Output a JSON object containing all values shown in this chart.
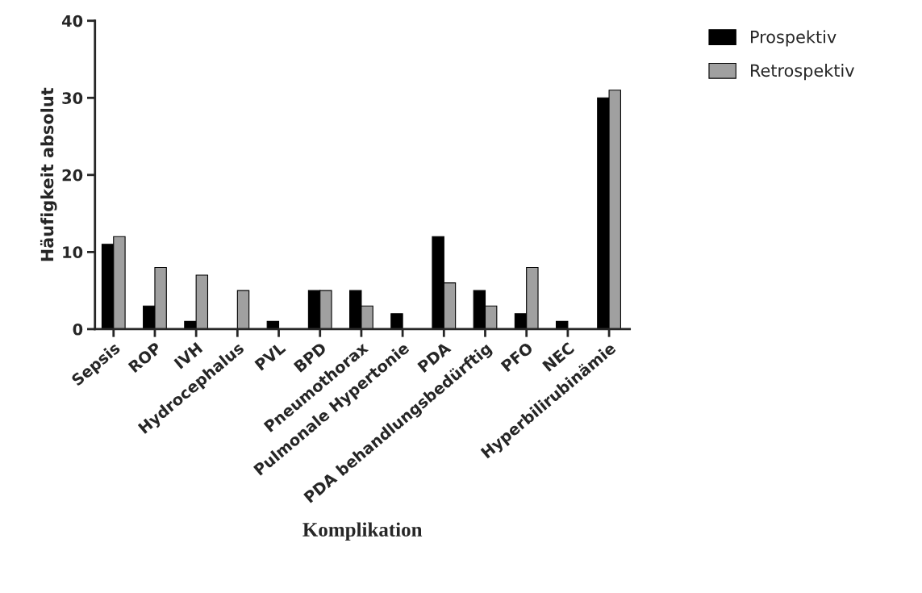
{
  "chart_data": {
    "type": "bar",
    "xlabel": "Komplikation",
    "ylabel": "Häufigkeit absolut",
    "categories": [
      "Sepsis",
      "ROP",
      "IVH",
      "Hydrocephalus",
      "PVL",
      "BPD",
      "Pneumothorax",
      "Pulmonale Hypertonie",
      "PDA",
      "PDA behandlungsbedürftig",
      "PFO",
      "NEC",
      "Hyperbilirubinämie"
    ],
    "series": [
      {
        "name": "Prospektiv",
        "color": "#000000",
        "values": [
          11,
          3,
          1,
          0,
          1,
          5,
          5,
          2,
          12,
          5,
          2,
          1,
          30
        ]
      },
      {
        "name": "Retrospektiv",
        "color": "#a0a0a0",
        "values": [
          12,
          8,
          7,
          5,
          0,
          5,
          3,
          0,
          6,
          3,
          8,
          0,
          31
        ]
      }
    ],
    "ylim": [
      0,
      40
    ],
    "yticks": [
      0,
      10,
      20,
      30,
      40
    ],
    "grid": false,
    "legend": "top right"
  }
}
